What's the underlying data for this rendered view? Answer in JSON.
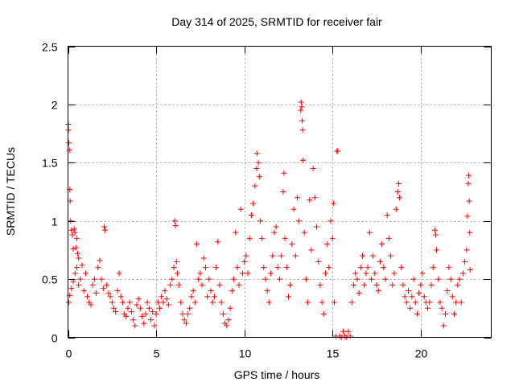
{
  "chart_data": {
    "type": "scatter",
    "title": "Day 314 of 2025, SRMTID for receiver fair",
    "xlabel": "GPS time / hours",
    "ylabel": "SRMTID / TECUs",
    "xlim": [
      0,
      24
    ],
    "ylim": [
      0,
      2.5
    ],
    "xticks": [
      0,
      5,
      10,
      15,
      20
    ],
    "xtick_labels": [
      "0",
      "5",
      "10",
      "15",
      "20"
    ],
    "yticks": [
      0,
      0.5,
      1,
      1.5,
      2,
      2.5
    ],
    "ytick_labels": [
      "0",
      "0.5",
      "1",
      "1.5",
      "2",
      "2.5"
    ],
    "grid": true,
    "marker": "+",
    "color": "#ff0000",
    "series": [
      {
        "name": "SRMTID",
        "points": [
          [
            0.02,
            1.83
          ],
          [
            0.03,
            1.78
          ],
          [
            0.05,
            1.67
          ],
          [
            0.08,
            1.61
          ],
          [
            0.1,
            1.27
          ],
          [
            0.12,
            1.17
          ],
          [
            0.15,
            1.0
          ],
          [
            0.2,
            0.92
          ],
          [
            0.25,
            0.88
          ],
          [
            0.3,
            0.76
          ],
          [
            0.35,
            0.93
          ],
          [
            0.4,
            0.9
          ],
          [
            0.45,
            0.77
          ],
          [
            0.5,
            0.85
          ],
          [
            0.55,
            0.72
          ],
          [
            0.6,
            0.68
          ],
          [
            0.05,
            0.3
          ],
          [
            0.1,
            0.36
          ],
          [
            0.2,
            0.42
          ],
          [
            0.3,
            0.48
          ],
          [
            0.4,
            0.55
          ],
          [
            0.5,
            0.6
          ],
          [
            0.6,
            0.45
          ],
          [
            0.7,
            0.5
          ],
          [
            0.8,
            0.62
          ],
          [
            0.9,
            0.4
          ],
          [
            1.0,
            0.55
          ],
          [
            1.1,
            0.35
          ],
          [
            1.2,
            0.3
          ],
          [
            1.3,
            0.28
          ],
          [
            1.4,
            0.45
          ],
          [
            1.5,
            0.5
          ],
          [
            1.6,
            0.38
          ],
          [
            1.7,
            0.6
          ],
          [
            1.8,
            0.66
          ],
          [
            1.9,
            0.5
          ],
          [
            2.0,
            0.42
          ],
          [
            2.05,
            0.95
          ],
          [
            2.1,
            0.92
          ],
          [
            2.2,
            0.45
          ],
          [
            2.3,
            0.38
          ],
          [
            2.4,
            0.35
          ],
          [
            2.5,
            0.3
          ],
          [
            2.6,
            0.25
          ],
          [
            2.7,
            0.22
          ],
          [
            2.8,
            0.4
          ],
          [
            2.9,
            0.55
          ],
          [
            3.0,
            0.35
          ],
          [
            3.1,
            0.3
          ],
          [
            3.2,
            0.2
          ],
          [
            3.3,
            0.18
          ],
          [
            3.4,
            0.25
          ],
          [
            3.5,
            0.3
          ],
          [
            3.6,
            0.22
          ],
          [
            3.7,
            0.15
          ],
          [
            3.8,
            0.1
          ],
          [
            3.9,
            0.28
          ],
          [
            4.0,
            0.33
          ],
          [
            4.1,
            0.25
          ],
          [
            4.2,
            0.18
          ],
          [
            4.3,
            0.12
          ],
          [
            4.4,
            0.2
          ],
          [
            4.5,
            0.3
          ],
          [
            4.6,
            0.25
          ],
          [
            4.7,
            0.15
          ],
          [
            4.8,
            0.22
          ],
          [
            4.9,
            0.1
          ],
          [
            5.0,
            0.2
          ],
          [
            5.1,
            0.3
          ],
          [
            5.2,
            0.25
          ],
          [
            5.3,
            0.35
          ],
          [
            5.4,
            0.3
          ],
          [
            5.5,
            0.4
          ],
          [
            5.6,
            0.33
          ],
          [
            5.7,
            0.28
          ],
          [
            5.8,
            0.45
          ],
          [
            5.9,
            0.5
          ],
          [
            6.0,
            0.6
          ],
          [
            6.05,
            1.0
          ],
          [
            6.1,
            0.96
          ],
          [
            6.15,
            0.65
          ],
          [
            6.2,
            0.55
          ],
          [
            6.3,
            0.45
          ],
          [
            6.4,
            0.3
          ],
          [
            6.5,
            0.2
          ],
          [
            6.6,
            0.15
          ],
          [
            6.7,
            0.12
          ],
          [
            6.8,
            0.2
          ],
          [
            6.9,
            0.25
          ],
          [
            7.0,
            0.35
          ],
          [
            7.1,
            0.4
          ],
          [
            7.2,
            0.3
          ],
          [
            7.3,
            0.8
          ],
          [
            7.4,
            0.5
          ],
          [
            7.5,
            0.55
          ],
          [
            7.6,
            0.45
          ],
          [
            7.7,
            0.68
          ],
          [
            7.8,
            0.6
          ],
          [
            7.9,
            0.35
          ],
          [
            8.0,
            0.5
          ],
          [
            8.1,
            0.4
          ],
          [
            8.2,
            0.3
          ],
          [
            8.3,
            0.35
          ],
          [
            8.4,
            0.6
          ],
          [
            8.5,
            0.82
          ],
          [
            8.6,
            0.45
          ],
          [
            8.7,
            0.3
          ],
          [
            8.8,
            0.2
          ],
          [
            8.9,
            0.12
          ],
          [
            9.0,
            0.1
          ],
          [
            9.1,
            0.15
          ],
          [
            9.2,
            0.25
          ],
          [
            9.3,
            0.4
          ],
          [
            9.4,
            0.5
          ],
          [
            9.5,
            0.9
          ],
          [
            9.6,
            0.6
          ],
          [
            9.7,
            0.45
          ],
          [
            9.8,
            1.1
          ],
          [
            9.9,
            0.55
          ],
          [
            10.0,
            0.65
          ],
          [
            10.1,
            0.7
          ],
          [
            10.2,
            0.55
          ],
          [
            10.3,
            0.85
          ],
          [
            10.4,
            1.05
          ],
          [
            10.5,
            1.15
          ],
          [
            10.6,
            1.3
          ],
          [
            10.7,
            1.45
          ],
          [
            10.72,
            1.58
          ],
          [
            10.8,
            1.5
          ],
          [
            10.85,
            1.38
          ],
          [
            10.9,
            1.0
          ],
          [
            11.0,
            0.85
          ],
          [
            11.1,
            0.6
          ],
          [
            11.2,
            0.5
          ],
          [
            11.3,
            0.4
          ],
          [
            11.4,
            0.3
          ],
          [
            11.5,
            0.55
          ],
          [
            11.6,
            0.7
          ],
          [
            11.7,
            0.9
          ],
          [
            11.8,
            0.95
          ],
          [
            11.9,
            0.6
          ],
          [
            12.0,
            0.5
          ],
          [
            12.1,
            0.7
          ],
          [
            12.2,
            1.25
          ],
          [
            12.25,
            1.41
          ],
          [
            12.3,
            0.85
          ],
          [
            12.4,
            0.6
          ],
          [
            12.5,
            0.35
          ],
          [
            12.6,
            0.45
          ],
          [
            12.7,
            0.8
          ],
          [
            12.8,
            1.1
          ],
          [
            12.9,
            0.7
          ],
          [
            13.0,
            1.2
          ],
          [
            13.1,
            1.0
          ],
          [
            13.2,
            1.95
          ],
          [
            13.22,
            2.02
          ],
          [
            13.25,
            1.98
          ],
          [
            13.28,
            1.86
          ],
          [
            13.3,
            1.78
          ],
          [
            13.32,
            1.52
          ],
          [
            13.4,
            0.9
          ],
          [
            13.5,
            0.5
          ],
          [
            13.6,
            0.3
          ],
          [
            13.7,
            1.18
          ],
          [
            13.8,
            0.75
          ],
          [
            13.9,
            1.45
          ],
          [
            14.0,
            1.2
          ],
          [
            14.1,
            0.95
          ],
          [
            14.2,
            0.65
          ],
          [
            14.3,
            0.45
          ],
          [
            14.4,
            0.3
          ],
          [
            14.5,
            0.2
          ],
          [
            14.6,
            0.55
          ],
          [
            14.7,
            0.8
          ],
          [
            14.8,
            0.6
          ],
          [
            14.9,
            1.0
          ],
          [
            15.0,
            0.85
          ],
          [
            15.05,
            1.15
          ],
          [
            15.1,
            0.3
          ],
          [
            15.2,
            0.01
          ],
          [
            15.25,
            1.6
          ],
          [
            15.3,
            1.6
          ],
          [
            15.4,
            0.01
          ],
          [
            15.5,
            0.0
          ],
          [
            15.6,
            0.05
          ],
          [
            15.7,
            0.01
          ],
          [
            15.8,
            0.0
          ],
          [
            15.9,
            0.05
          ],
          [
            16.0,
            0.01
          ],
          [
            16.1,
            0.3
          ],
          [
            16.2,
            0.45
          ],
          [
            16.3,
            0.55
          ],
          [
            16.4,
            0.5
          ],
          [
            16.5,
            0.38
          ],
          [
            16.6,
            0.6
          ],
          [
            16.7,
            0.7
          ],
          [
            16.8,
            0.45
          ],
          [
            16.9,
            0.55
          ],
          [
            17.0,
            0.6
          ],
          [
            17.1,
            0.9
          ],
          [
            17.2,
            0.5
          ],
          [
            17.3,
            0.7
          ],
          [
            17.4,
            0.55
          ],
          [
            17.5,
            0.45
          ],
          [
            17.6,
            0.4
          ],
          [
            17.7,
            0.65
          ],
          [
            17.8,
            0.8
          ],
          [
            17.9,
            0.6
          ],
          [
            18.0,
            0.5
          ],
          [
            18.1,
            1.05
          ],
          [
            18.2,
            0.85
          ],
          [
            18.3,
            0.7
          ],
          [
            18.4,
            0.45
          ],
          [
            18.5,
            0.55
          ],
          [
            18.6,
            1.1
          ],
          [
            18.7,
            1.25
          ],
          [
            18.75,
            1.32
          ],
          [
            18.8,
            1.2
          ],
          [
            18.9,
            0.6
          ],
          [
            19.0,
            0.45
          ],
          [
            19.1,
            0.35
          ],
          [
            19.2,
            0.3
          ],
          [
            19.3,
            0.4
          ],
          [
            19.4,
            0.25
          ],
          [
            19.5,
            0.35
          ],
          [
            19.6,
            0.5
          ],
          [
            19.7,
            0.3
          ],
          [
            19.8,
            0.2
          ],
          [
            19.9,
            0.38
          ],
          [
            20.0,
            0.45
          ],
          [
            20.1,
            0.55
          ],
          [
            20.2,
            0.35
          ],
          [
            20.3,
            0.3
          ],
          [
            20.4,
            0.25
          ],
          [
            20.5,
            0.3
          ],
          [
            20.6,
            0.45
          ],
          [
            20.7,
            0.6
          ],
          [
            20.8,
            0.92
          ],
          [
            20.85,
            0.88
          ],
          [
            20.9,
            0.75
          ],
          [
            21.0,
            0.5
          ],
          [
            21.1,
            0.3
          ],
          [
            21.2,
            0.25
          ],
          [
            21.3,
            0.1
          ],
          [
            21.4,
            0.2
          ],
          [
            21.5,
            0.4
          ],
          [
            21.6,
            0.6
          ],
          [
            21.7,
            0.5
          ],
          [
            21.8,
            0.35
          ],
          [
            21.9,
            0.2
          ],
          [
            22.0,
            0.3
          ],
          [
            22.1,
            0.45
          ],
          [
            22.2,
            0.5
          ],
          [
            22.3,
            0.3
          ],
          [
            22.4,
            0.55
          ],
          [
            22.5,
            0.65
          ],
          [
            22.6,
            0.75
          ],
          [
            22.65,
            1.04
          ],
          [
            22.7,
            1.32
          ],
          [
            22.72,
            1.39
          ],
          [
            22.75,
            1.17
          ],
          [
            22.78,
            0.9
          ],
          [
            22.8,
            0.58
          ]
        ]
      }
    ]
  }
}
